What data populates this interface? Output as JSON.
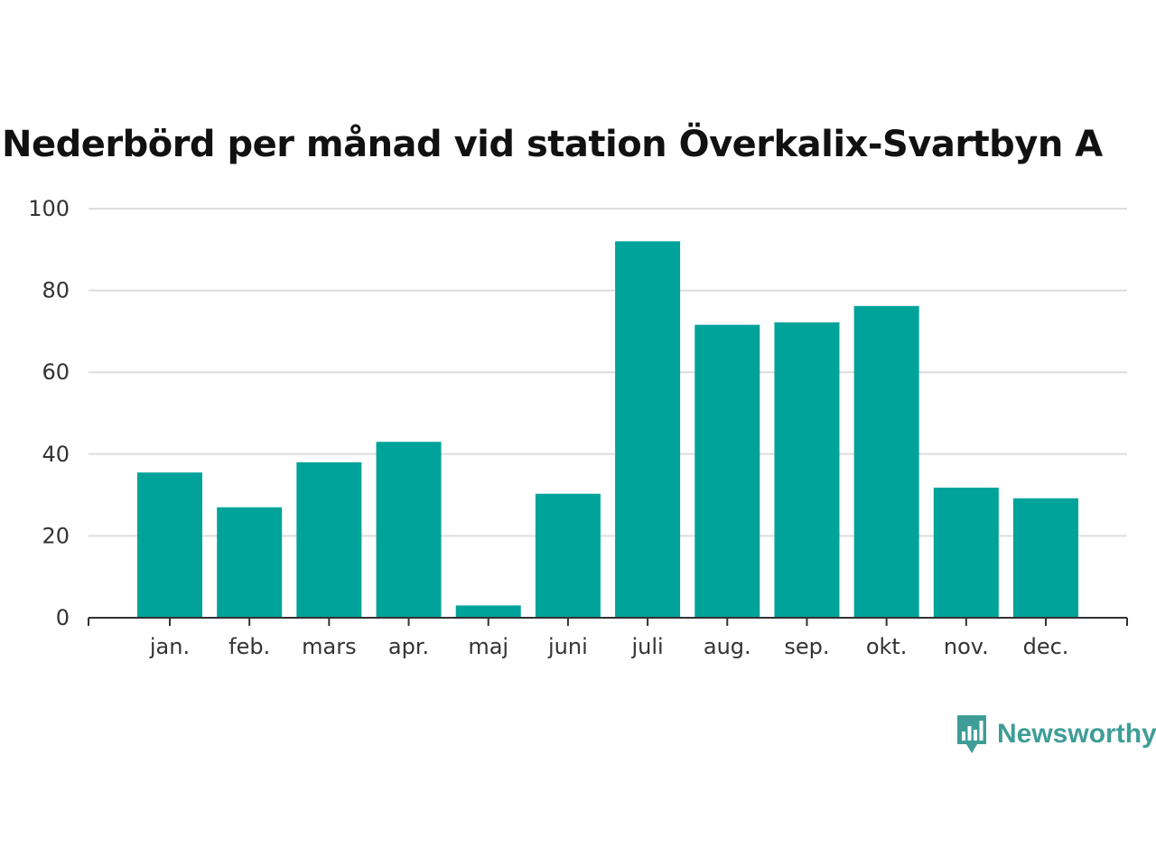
{
  "colors": {
    "bar": "#00a39a",
    "grid": "#dddddd",
    "axis": "#333333",
    "logo": "#3e9d97"
  },
  "logo": {
    "icon": "bar-chart-speech-bubble-icon",
    "text": "Newsworthy"
  },
  "chart_data": {
    "type": "bar",
    "title": "Nederbörd per månad vid station Överkalix-Svartbyn A",
    "xlabel": "",
    "ylabel": "",
    "categories": [
      "jan.",
      "feb.",
      "mars",
      "apr.",
      "maj",
      "juni",
      "juli",
      "aug.",
      "sep.",
      "okt.",
      "nov.",
      "dec."
    ],
    "values": [
      35.5,
      27,
      38,
      43,
      3,
      30.3,
      92,
      71.6,
      72.2,
      76.2,
      31.8,
      29.2
    ],
    "ylim": [
      0,
      100
    ],
    "yticks": [
      0,
      20,
      40,
      60,
      80,
      100
    ],
    "grid": true,
    "legend": "none"
  }
}
